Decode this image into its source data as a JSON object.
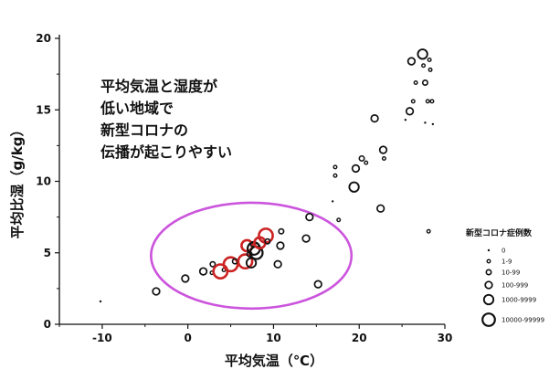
{
  "chart_data": {
    "type": "scatter",
    "xlabel": "平均気温（℃）",
    "ylabel": "平均比湿（g/kg）",
    "xlim": [
      -15,
      30
    ],
    "ylim": [
      0,
      20
    ],
    "xticks": [
      -10,
      0,
      10,
      20,
      30
    ],
    "yticks": [
      0,
      5,
      10,
      15,
      20
    ],
    "grid": false,
    "annotation": [
      "平均気温と湿度が",
      "低い地域で",
      "新型コロナの",
      "伝播が起こりやすい"
    ],
    "highlight_region": {
      "shape": "ellipse",
      "color": "#cc55dd",
      "center": [
        7.4,
        4.8
      ],
      "radius_x": 11.7,
      "radius_y": 3.7
    },
    "legend": {
      "title": "新型コロナ症例数",
      "position": "right",
      "entries": [
        {
          "label": "0",
          "size_class": 0
        },
        {
          "label": "1-9",
          "size_class": 1
        },
        {
          "label": "10-99",
          "size_class": 2
        },
        {
          "label": "100-999",
          "size_class": 3
        },
        {
          "label": "1000-9999",
          "size_class": 4
        },
        {
          "label": "10000-99999",
          "size_class": 5
        }
      ]
    },
    "highlight_color": "#cc2222",
    "points": [
      {
        "x": -10.2,
        "y": 1.6,
        "size_class": 0,
        "highlight": false
      },
      {
        "x": -3.7,
        "y": 2.3,
        "size_class": 3,
        "highlight": false
      },
      {
        "x": -0.3,
        "y": 3.2,
        "size_class": 3,
        "highlight": false
      },
      {
        "x": 1.8,
        "y": 3.7,
        "size_class": 3,
        "highlight": false
      },
      {
        "x": 2.8,
        "y": 3.6,
        "size_class": 1,
        "highlight": false
      },
      {
        "x": 2.9,
        "y": 4.2,
        "size_class": 2,
        "highlight": false
      },
      {
        "x": 3.8,
        "y": 3.7,
        "size_class": 5,
        "highlight": true
      },
      {
        "x": 4.2,
        "y": 3.8,
        "size_class": 1,
        "highlight": false
      },
      {
        "x": 5.0,
        "y": 4.2,
        "size_class": 5,
        "highlight": true
      },
      {
        "x": 5.5,
        "y": 4.4,
        "size_class": 2,
        "highlight": false
      },
      {
        "x": 6.7,
        "y": 4.4,
        "size_class": 5,
        "highlight": true
      },
      {
        "x": 6.9,
        "y": 5.5,
        "size_class": 4,
        "highlight": true
      },
      {
        "x": 7.2,
        "y": 4.9,
        "size_class": 2,
        "highlight": false
      },
      {
        "x": 7.4,
        "y": 4.3,
        "size_class": 4,
        "highlight": false
      },
      {
        "x": 7.7,
        "y": 5.3,
        "size_class": 5,
        "highlight": false
      },
      {
        "x": 8.0,
        "y": 5.0,
        "size_class": 5,
        "highlight": false
      },
      {
        "x": 7.6,
        "y": 5.6,
        "size_class": 2,
        "highlight": false
      },
      {
        "x": 8.4,
        "y": 5.7,
        "size_class": 4,
        "highlight": true
      },
      {
        "x": 9.1,
        "y": 6.2,
        "size_class": 5,
        "highlight": true
      },
      {
        "x": 9.3,
        "y": 5.8,
        "size_class": 2,
        "highlight": false
      },
      {
        "x": 10.5,
        "y": 4.2,
        "size_class": 3,
        "highlight": false
      },
      {
        "x": 10.8,
        "y": 5.5,
        "size_class": 3,
        "highlight": false
      },
      {
        "x": 10.9,
        "y": 6.5,
        "size_class": 2,
        "highlight": false
      },
      {
        "x": 13.8,
        "y": 6.0,
        "size_class": 3,
        "highlight": false
      },
      {
        "x": 14.2,
        "y": 7.5,
        "size_class": 3,
        "highlight": false
      },
      {
        "x": 15.2,
        "y": 2.8,
        "size_class": 3,
        "highlight": false
      },
      {
        "x": 16.9,
        "y": 8.6,
        "size_class": 0,
        "highlight": false
      },
      {
        "x": 17.2,
        "y": 11.0,
        "size_class": 1,
        "highlight": false
      },
      {
        "x": 17.2,
        "y": 10.4,
        "size_class": 1,
        "highlight": false
      },
      {
        "x": 17.6,
        "y": 7.3,
        "size_class": 1,
        "highlight": false
      },
      {
        "x": 19.4,
        "y": 9.6,
        "size_class": 4,
        "highlight": false
      },
      {
        "x": 19.6,
        "y": 10.9,
        "size_class": 3,
        "highlight": false
      },
      {
        "x": 20.3,
        "y": 11.6,
        "size_class": 2,
        "highlight": false
      },
      {
        "x": 20.8,
        "y": 11.3,
        "size_class": 1,
        "highlight": false
      },
      {
        "x": 21.8,
        "y": 14.4,
        "size_class": 3,
        "highlight": false
      },
      {
        "x": 22.5,
        "y": 8.1,
        "size_class": 3,
        "highlight": false
      },
      {
        "x": 22.8,
        "y": 12.2,
        "size_class": 3,
        "highlight": false
      },
      {
        "x": 22.9,
        "y": 11.6,
        "size_class": 1,
        "highlight": false
      },
      {
        "x": 25.4,
        "y": 14.3,
        "size_class": 0,
        "highlight": false
      },
      {
        "x": 25.9,
        "y": 14.9,
        "size_class": 3,
        "highlight": false
      },
      {
        "x": 26.1,
        "y": 18.4,
        "size_class": 3,
        "highlight": false
      },
      {
        "x": 26.3,
        "y": 15.6,
        "size_class": 1,
        "highlight": false
      },
      {
        "x": 26.6,
        "y": 16.9,
        "size_class": 1,
        "highlight": false
      },
      {
        "x": 27.4,
        "y": 18.9,
        "size_class": 4,
        "highlight": false
      },
      {
        "x": 27.5,
        "y": 18.1,
        "size_class": 1,
        "highlight": false
      },
      {
        "x": 27.7,
        "y": 14.1,
        "size_class": 0,
        "highlight": false
      },
      {
        "x": 27.7,
        "y": 16.9,
        "size_class": 2,
        "highlight": false
      },
      {
        "x": 28.0,
        "y": 15.6,
        "size_class": 1,
        "highlight": false
      },
      {
        "x": 28.1,
        "y": 6.5,
        "size_class": 1,
        "highlight": false
      },
      {
        "x": 28.2,
        "y": 18.5,
        "size_class": 1,
        "highlight": false
      },
      {
        "x": 28.3,
        "y": 17.8,
        "size_class": 1,
        "highlight": false
      },
      {
        "x": 28.5,
        "y": 15.6,
        "size_class": 1,
        "highlight": false
      },
      {
        "x": 28.6,
        "y": 14.0,
        "size_class": 0,
        "highlight": false
      }
    ]
  }
}
